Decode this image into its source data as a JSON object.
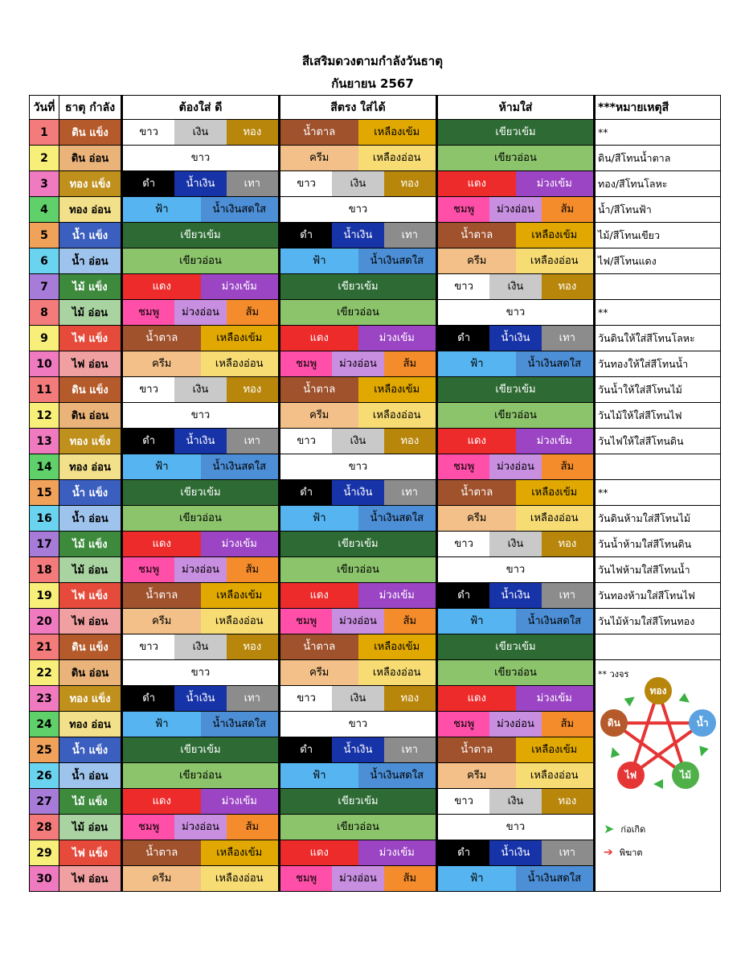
{
  "title": "สีเสริมดวงตามกำลังวันธาตุ",
  "subtitle": "กันยายน 2567",
  "headers": [
    "วันที่",
    "ธาตุ กำลัง",
    "ต้องใส่ ดี",
    "สีตรง ใส่ได้",
    "ห้ามใส่",
    "***หมายเหตุสี"
  ],
  "colors": {
    "ขาว": "#ffffff",
    "เงิน": "#c9c9c9",
    "ทอง": "#b8860b",
    "น้ำตาล": "#a0522d",
    "เหลืองเข้ม": "#e0a800",
    "เขียวเข้ม": "#2e6b34",
    "ครีม": "#f2c088",
    "เหลืองอ่อน": "#f7dc74",
    "เขียวอ่อน": "#8cc46c",
    "ดำ": "#000000",
    "น้ำเงิน": "#1733a8",
    "เทา": "#8c8c8c",
    "แดง": "#ee2b2b",
    "ม่วงเข้ม": "#9b45c4",
    "ฟ้า": "#56b4f0",
    "น้ำเงินสดใส": "#4d8fd6",
    "ชมพู": "#ff4fa8",
    "ม่วงอ่อน": "#c88fe0",
    "ส้ม": "#f48c2c"
  },
  "dark_text": [
    "ดำ",
    "น้ำเงิน",
    "เขียวเข้ม",
    "น้ำตาล",
    "แดง",
    "ม่วงเข้ม",
    "เทา",
    "ทอง"
  ],
  "element_colors": {
    "ดิน แข็ง": {
      "day": "#f47b7b",
      "el": "#b55a2a",
      "fg": "#ffffff"
    },
    "ดิน อ่อน": {
      "day": "#f7ef7a",
      "el": "#e9b37a",
      "fg": "#000000"
    },
    "ทอง แข็ง": {
      "day": "#f07ac0",
      "el": "#c0901c",
      "fg": "#ffffff"
    },
    "ทอง อ่อน": {
      "day": "#5fd06a",
      "el": "#f2e08a",
      "fg": "#000000"
    },
    "น้ำ แข็ง": {
      "day": "#f1a25a",
      "el": "#3b5fbf",
      "fg": "#ffffff"
    },
    "น้ำ อ่อน": {
      "day": "#6ad3f0",
      "el": "#9ec3ec",
      "fg": "#000000"
    },
    "ไม้ แข็ง": {
      "day": "#a77cd9",
      "el": "#3d8a3d",
      "fg": "#ffffff"
    },
    "ไม้ อ่อน": {
      "day": "#f47b7b",
      "el": "#a9d4a1",
      "fg": "#000000"
    },
    "ไฟ แข็ง": {
      "day": "#f7ef7a",
      "el": "#e54a3a",
      "fg": "#ffffff"
    },
    "ไฟ อ่อน": {
      "day": "#f07ac0",
      "el": "#f0a0a0",
      "fg": "#000000"
    }
  },
  "rows": [
    {
      "day": "1",
      "element": "ดิน แข็ง",
      "good": [
        "ขาว",
        "เงิน",
        "ทอง"
      ],
      "ok": [
        "น้ำตาล",
        "เหลืองเข้ม"
      ],
      "bad": [
        "เขียวเข้ม"
      ],
      "note": "**"
    },
    {
      "day": "2",
      "element": "ดิน อ่อน",
      "good": [
        "ขาว"
      ],
      "ok": [
        "ครีม",
        "เหลืองอ่อน"
      ],
      "bad": [
        "เขียวอ่อน"
      ],
      "note": "ดิน/สีโทนน้ำตาล"
    },
    {
      "day": "3",
      "element": "ทอง แข็ง",
      "good": [
        "ดำ",
        "น้ำเงิน",
        "เทา"
      ],
      "ok": [
        "ขาว",
        "เงิน",
        "ทอง"
      ],
      "bad": [
        "แดง",
        "ม่วงเข้ม"
      ],
      "note": "ทอง/สีโทนโลหะ"
    },
    {
      "day": "4",
      "element": "ทอง อ่อน",
      "good": [
        "ฟ้า",
        "น้ำเงินสดใส"
      ],
      "ok": [
        "ขาว"
      ],
      "bad": [
        "ชมพู",
        "ม่วงอ่อน",
        "ส้ม"
      ],
      "note": "น้ำ/สีโทนฟ้า"
    },
    {
      "day": "5",
      "element": "น้ำ แข็ง",
      "good": [
        "เขียวเข้ม"
      ],
      "ok": [
        "ดำ",
        "น้ำเงิน",
        "เทา"
      ],
      "bad": [
        "น้ำตาล",
        "เหลืองเข้ม"
      ],
      "note": "ไม้/สีโทนเขียว"
    },
    {
      "day": "6",
      "element": "น้ำ อ่อน",
      "good": [
        "เขียวอ่อน"
      ],
      "ok": [
        "ฟ้า",
        "น้ำเงินสดใส"
      ],
      "bad": [
        "ครีม",
        "เหลืองอ่อน"
      ],
      "note": "ไฟ/สีโทนแดง"
    },
    {
      "day": "7",
      "element": "ไม้ แข็ง",
      "good": [
        "แดง",
        "ม่วงเข้ม"
      ],
      "ok": [
        "เขียวเข้ม"
      ],
      "bad": [
        "ขาว",
        "เงิน",
        "ทอง"
      ],
      "note": ""
    },
    {
      "day": "8",
      "element": "ไม้ อ่อน",
      "good": [
        "ชมพู",
        "ม่วงอ่อน",
        "ส้ม"
      ],
      "ok": [
        "เขียวอ่อน"
      ],
      "bad": [
        "ขาว"
      ],
      "note": "**"
    },
    {
      "day": "9",
      "element": "ไฟ แข็ง",
      "good": [
        "น้ำตาล",
        "เหลืองเข้ม"
      ],
      "ok": [
        "แดง",
        "ม่วงเข้ม"
      ],
      "bad": [
        "ดำ",
        "น้ำเงิน",
        "เทา"
      ],
      "note": "วันดินให้ใส่สีโทนโลหะ"
    },
    {
      "day": "10",
      "element": "ไฟ อ่อน",
      "good": [
        "ครีม",
        "เหลืองอ่อน"
      ],
      "ok": [
        "ชมพู",
        "ม่วงอ่อน",
        "ส้ม"
      ],
      "bad": [
        "ฟ้า",
        "น้ำเงินสดใส"
      ],
      "note": "วันทองให้ใส่สีโทนน้ำ"
    },
    {
      "day": "11",
      "element": "ดิน แข็ง",
      "good": [
        "ขาว",
        "เงิน",
        "ทอง"
      ],
      "ok": [
        "น้ำตาล",
        "เหลืองเข้ม"
      ],
      "bad": [
        "เขียวเข้ม"
      ],
      "note": "วันน้ำให้ใส่สีโทนไม้"
    },
    {
      "day": "12",
      "element": "ดิน อ่อน",
      "good": [
        "ขาว"
      ],
      "ok": [
        "ครีม",
        "เหลืองอ่อน"
      ],
      "bad": [
        "เขียวอ่อน"
      ],
      "note": "วันไม้ให้ใส่สีโทนไฟ"
    },
    {
      "day": "13",
      "element": "ทอง แข็ง",
      "good": [
        "ดำ",
        "น้ำเงิน",
        "เทา"
      ],
      "ok": [
        "ขาว",
        "เงิน",
        "ทอง"
      ],
      "bad": [
        "แดง",
        "ม่วงเข้ม"
      ],
      "note": "วันไฟให้ใส่สีโทนดิน"
    },
    {
      "day": "14",
      "element": "ทอง อ่อน",
      "good": [
        "ฟ้า",
        "น้ำเงินสดใส"
      ],
      "ok": [
        "ขาว"
      ],
      "bad": [
        "ชมพู",
        "ม่วงอ่อน",
        "ส้ม"
      ],
      "note": ""
    },
    {
      "day": "15",
      "element": "น้ำ แข็ง",
      "good": [
        "เขียวเข้ม"
      ],
      "ok": [
        "ดำ",
        "น้ำเงิน",
        "เทา"
      ],
      "bad": [
        "น้ำตาล",
        "เหลืองเข้ม"
      ],
      "note": "**"
    },
    {
      "day": "16",
      "element": "น้ำ อ่อน",
      "good": [
        "เขียวอ่อน"
      ],
      "ok": [
        "ฟ้า",
        "น้ำเงินสดใส"
      ],
      "bad": [
        "ครีม",
        "เหลืองอ่อน"
      ],
      "note": "วันดินห้ามใส่สีโทนไม้"
    },
    {
      "day": "17",
      "element": "ไม้ แข็ง",
      "good": [
        "แดง",
        "ม่วงเข้ม"
      ],
      "ok": [
        "เขียวเข้ม"
      ],
      "bad": [
        "ขาว",
        "เงิน",
        "ทอง"
      ],
      "note": "วันน้ำห้ามใส่สีโทนดิน"
    },
    {
      "day": "18",
      "element": "ไม้ อ่อน",
      "good": [
        "ชมพู",
        "ม่วงอ่อน",
        "ส้ม"
      ],
      "ok": [
        "เขียวอ่อน"
      ],
      "bad": [
        "ขาว"
      ],
      "note": "วันไฟห้ามใส่สีโทนน้ำ"
    },
    {
      "day": "19",
      "element": "ไฟ แข็ง",
      "good": [
        "น้ำตาล",
        "เหลืองเข้ม"
      ],
      "ok": [
        "แดง",
        "ม่วงเข้ม"
      ],
      "bad": [
        "ดำ",
        "น้ำเงิน",
        "เทา"
      ],
      "note": "วันทองห้ามใส่สีโทนไฟ"
    },
    {
      "day": "20",
      "element": "ไฟ อ่อน",
      "good": [
        "ครีม",
        "เหลืองอ่อน"
      ],
      "ok": [
        "ชมพู",
        "ม่วงอ่อน",
        "ส้ม"
      ],
      "bad": [
        "ฟ้า",
        "น้ำเงินสดใส"
      ],
      "note": "วันไม้ห้ามใส่สีโทนทอง"
    },
    {
      "day": "21",
      "element": "ดิน แข็ง",
      "good": [
        "ขาว",
        "เงิน",
        "ทอง"
      ],
      "ok": [
        "น้ำตาล",
        "เหลืองเข้ม"
      ],
      "bad": [
        "เขียวเข้ม"
      ],
      "note": ""
    },
    {
      "day": "22",
      "element": "ดิน อ่อน",
      "good": [
        "ขาว"
      ],
      "ok": [
        "ครีม",
        "เหลืองอ่อน"
      ],
      "bad": [
        "เขียวอ่อน"
      ],
      "note": "** วงจร"
    },
    {
      "day": "23",
      "element": "ทอง แข็ง",
      "good": [
        "ดำ",
        "น้ำเงิน",
        "เทา"
      ],
      "ok": [
        "ขาว",
        "เงิน",
        "ทอง"
      ],
      "bad": [
        "แดง",
        "ม่วงเข้ม"
      ],
      "note": ""
    },
    {
      "day": "24",
      "element": "ทอง อ่อน",
      "good": [
        "ฟ้า",
        "น้ำเงินสดใส"
      ],
      "ok": [
        "ขาว"
      ],
      "bad": [
        "ชมพู",
        "ม่วงอ่อน",
        "ส้ม"
      ],
      "note": ""
    },
    {
      "day": "25",
      "element": "น้ำ แข็ง",
      "good": [
        "เขียวเข้ม"
      ],
      "ok": [
        "ดำ",
        "น้ำเงิน",
        "เทา"
      ],
      "bad": [
        "น้ำตาล",
        "เหลืองเข้ม"
      ],
      "note": ""
    },
    {
      "day": "26",
      "element": "น้ำ อ่อน",
      "good": [
        "เขียวอ่อน"
      ],
      "ok": [
        "ฟ้า",
        "น้ำเงินสดใส"
      ],
      "bad": [
        "ครีม",
        "เหลืองอ่อน"
      ],
      "note": ""
    },
    {
      "day": "27",
      "element": "ไม้ แข็ง",
      "good": [
        "แดง",
        "ม่วงเข้ม"
      ],
      "ok": [
        "เขียวเข้ม"
      ],
      "bad": [
        "ขาว",
        "เงิน",
        "ทอง"
      ],
      "note": ""
    },
    {
      "day": "28",
      "element": "ไม้ อ่อน",
      "good": [
        "ชมพู",
        "ม่วงอ่อน",
        "ส้ม"
      ],
      "ok": [
        "เขียวอ่อน"
      ],
      "bad": [
        "ขาว"
      ],
      "note": ""
    },
    {
      "day": "29",
      "element": "ไฟ แข็ง",
      "good": [
        "น้ำตาล",
        "เหลืองเข้ม"
      ],
      "ok": [
        "แดง",
        "ม่วงเข้ม"
      ],
      "bad": [
        "ดำ",
        "น้ำเงิน",
        "เทา"
      ],
      "note": ""
    },
    {
      "day": "30",
      "element": "ไฟ อ่อน",
      "good": [
        "ครีม",
        "เหลืองอ่อน"
      ],
      "ok": [
        "ชมพู",
        "ม่วงอ่อน",
        "ส้ม"
      ],
      "bad": [
        "ฟ้า",
        "น้ำเงินสดใส"
      ],
      "note": ""
    }
  ],
  "cycle": {
    "nodes": [
      {
        "label": "ทอง",
        "color": "#b8860b"
      },
      {
        "label": "น้ำ",
        "color": "#5aa2e0"
      },
      {
        "label": "ไม้",
        "color": "#4fb04a"
      },
      {
        "label": "ไฟ",
        "color": "#e53535"
      },
      {
        "label": "ดิน",
        "color": "#b55a2a"
      }
    ],
    "legend_generate": "ก่อเกิด",
    "legend_destroy": "พิฆาต",
    "generate_color": "#3cb043",
    "destroy_color": "#e53535"
  }
}
